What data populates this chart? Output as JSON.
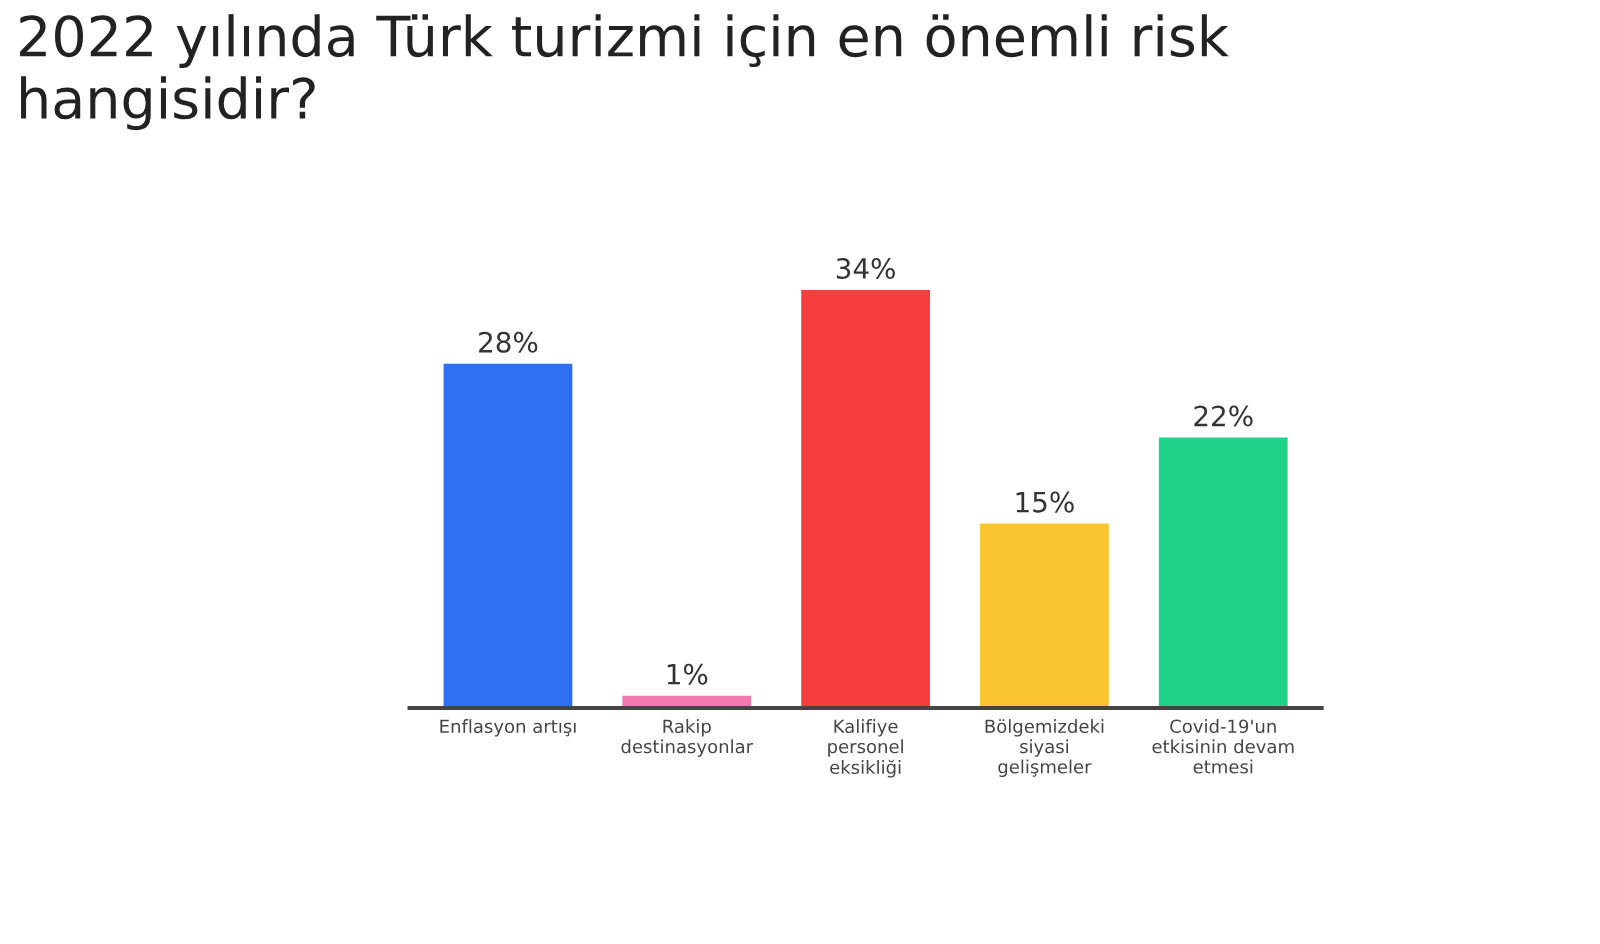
{
  "chart_data": {
    "type": "bar",
    "title": "2022 yılında Türk turizmi için en önemli risk\nhangisidir?",
    "categories": [
      "Enflasyon artışı",
      "Rakip\ndestinasyonlar",
      "Kalifiye\npersonel\neksikliği",
      "Bölgemizdeki\nsiyasi\ngelişmeler",
      "Covid-19'un\netkisinin devam\netmesi"
    ],
    "values": [
      28,
      1,
      34,
      15,
      22
    ],
    "colors": [
      "#2f6ff2",
      "#f07ab0",
      "#f53d3d",
      "#fbc531",
      "#1fd38a"
    ],
    "value_labels": [
      "28%",
      "1%",
      "34%",
      "15%",
      "22%"
    ],
    "grid": false
  }
}
